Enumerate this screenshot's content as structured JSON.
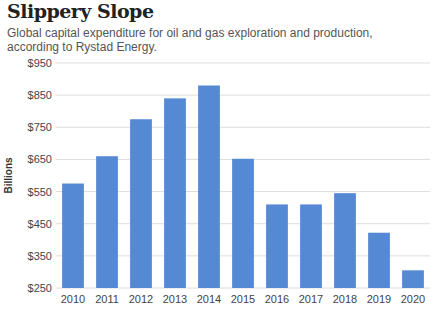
{
  "chart_data": {
    "type": "bar",
    "title": "Slippery Slope",
    "subtitle": "Global capital expenditure for oil and gas exploration and production, according to Rystad Energy.",
    "y_label": "Billions",
    "categories": [
      "2010",
      "2011",
      "2012",
      "2013",
      "2014",
      "2015",
      "2016",
      "2017",
      "2018",
      "2019",
      "2020"
    ],
    "values": [
      575,
      660,
      775,
      840,
      880,
      652,
      510,
      510,
      545,
      422,
      305
    ],
    "color": "#5589d3",
    "ylim": [
      250,
      950
    ],
    "yticks": [
      {
        "value": 250,
        "label": "$250"
      },
      {
        "value": 350,
        "label": "$350"
      },
      {
        "value": 450,
        "label": "$450"
      },
      {
        "value": 550,
        "label": "$550"
      },
      {
        "value": 650,
        "label": "$650"
      },
      {
        "value": 750,
        "label": "$750"
      },
      {
        "value": 850,
        "label": "$850"
      },
      {
        "value": 950,
        "label": "$950"
      }
    ],
    "grid": true
  }
}
